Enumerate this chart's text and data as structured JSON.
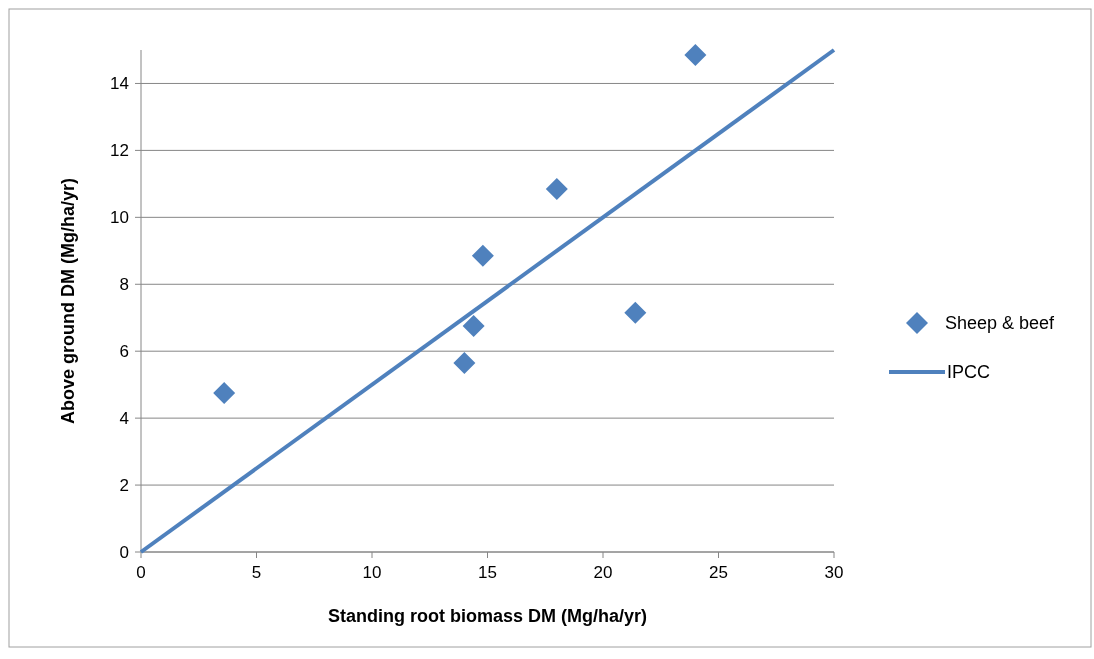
{
  "chart_data": {
    "type": "scatter",
    "xlabel": "Standing root biomass DM (Mg/ha/yr)",
    "ylabel": "Above ground DM (Mg/ha/yr)",
    "xlim": [
      0,
      30
    ],
    "xticks": [
      0,
      5,
      10,
      15,
      20,
      25,
      30
    ],
    "ylim": [
      0,
      15
    ],
    "yticks": [
      0,
      2,
      4,
      6,
      8,
      10,
      12,
      14
    ],
    "grid": "y",
    "legend": "right",
    "series": [
      {
        "name": "Sheep & beef",
        "marker": "diamond",
        "color": "#4f81bd",
        "x": [
          3.6,
          14,
          14.4,
          14.8,
          18,
          21.4,
          24
        ],
        "values": [
          4.75,
          5.65,
          6.75,
          8.85,
          10.85,
          7.15,
          14.85
        ]
      },
      {
        "name": "IPCC",
        "type": "line",
        "color": "#4f81bd",
        "x": [
          0,
          30
        ],
        "values": [
          0,
          15
        ],
        "marker": "none"
      }
    ]
  }
}
